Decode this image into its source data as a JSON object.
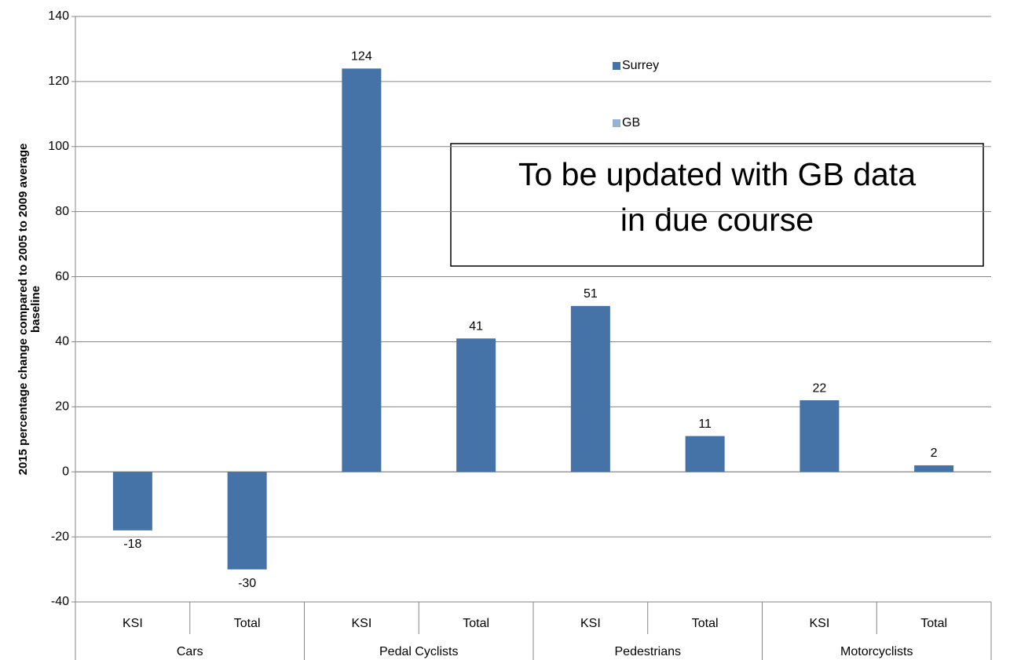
{
  "chart_data": {
    "type": "bar",
    "ylabel": [
      "2015 percentage change compared to 2005 to 2009 average",
      "baseline"
    ],
    "categories": [
      "KSI",
      "Total",
      "KSI",
      "Total",
      "KSI",
      "Total",
      "KSI",
      "Total"
    ],
    "category_groups": [
      "Cars",
      "Pedal Cyclists",
      "Pedestrians",
      "Motorcyclists"
    ],
    "series": [
      {
        "name": "Surrey",
        "color": "#4572a7",
        "values": [
          -18,
          -30,
          124,
          41,
          51,
          11,
          22,
          2
        ]
      },
      {
        "name": "GB",
        "color": "#95b3d7",
        "values": [
          null,
          null,
          null,
          null,
          null,
          null,
          null,
          null
        ]
      }
    ],
    "ylim": [
      -40,
      140
    ],
    "yticks": [
      -40,
      -20,
      0,
      20,
      40,
      60,
      80,
      100,
      120,
      140
    ],
    "grid": true,
    "annotation": [
      "To be updated with GB data",
      "in due course"
    ]
  }
}
